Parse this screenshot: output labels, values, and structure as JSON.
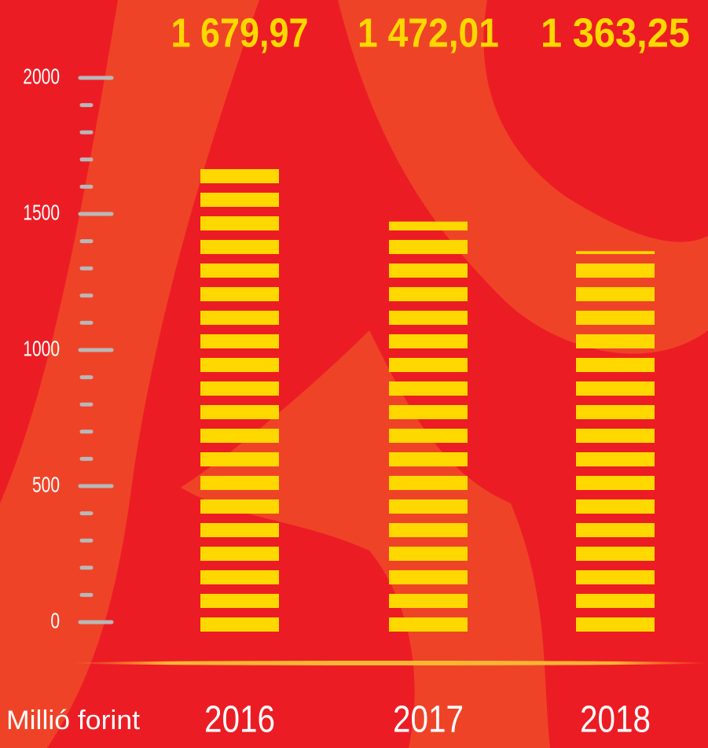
{
  "chart_data": {
    "type": "bar",
    "y_label": "Millió forint",
    "categories": [
      "2016",
      "2017",
      "2018"
    ],
    "values": [
      1679.97,
      1472.01,
      1363.25
    ],
    "value_labels": [
      "1 679,97",
      "1 472,01",
      "1 363,25"
    ],
    "color": "#ffd800",
    "ylim": [
      0,
      2000
    ],
    "yticks": [
      0,
      500,
      1000,
      1500,
      2000
    ],
    "yminorticks": [
      100,
      200,
      300,
      400,
      600,
      700,
      800,
      900,
      1100,
      1200,
      1300,
      1400,
      1600,
      1700,
      1800,
      1900
    ],
    "grid": false
  }
}
